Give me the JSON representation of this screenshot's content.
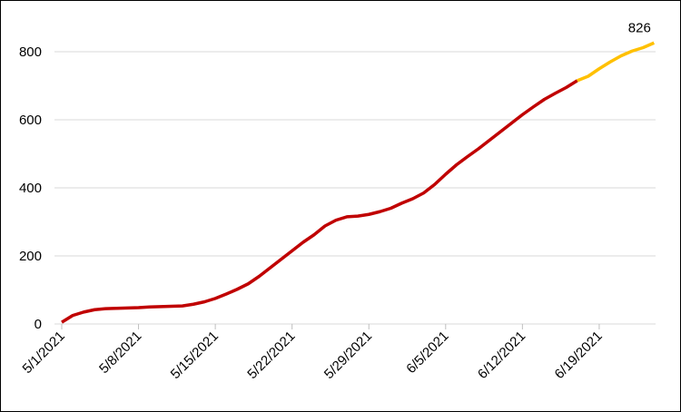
{
  "chart_data": {
    "type": "line",
    "categories": [
      "5/1/2021",
      null,
      null,
      null,
      null,
      null,
      null,
      "5/8/2021",
      null,
      null,
      null,
      null,
      null,
      null,
      "5/15/2021",
      null,
      null,
      null,
      null,
      null,
      null,
      "5/22/2021",
      null,
      null,
      null,
      null,
      null,
      null,
      "5/29/2021",
      null,
      null,
      null,
      null,
      null,
      null,
      "6/5/2021",
      null,
      null,
      null,
      null,
      null,
      null,
      "6/12/2021",
      null,
      null,
      null,
      null,
      null,
      null,
      "6/19/2021",
      null,
      null,
      null,
      null,
      null
    ],
    "series": [
      {
        "color": "#c00000",
        "values": [
          5,
          25,
          35,
          42,
          45,
          46,
          47,
          48,
          50,
          51,
          52,
          53,
          58,
          65,
          75,
          88,
          102,
          118,
          140,
          165,
          190,
          215,
          240,
          262,
          288,
          305,
          315,
          317,
          322,
          330,
          340,
          355,
          368,
          385,
          410,
          440,
          468,
          492,
          515,
          540,
          565,
          590,
          615,
          638,
          660,
          678,
          695,
          715,
          null,
          null,
          null,
          null,
          null,
          null,
          null
        ]
      },
      {
        "color": "#ffc000",
        "values": [
          null,
          null,
          null,
          null,
          null,
          null,
          null,
          null,
          null,
          null,
          null,
          null,
          null,
          null,
          null,
          null,
          null,
          null,
          null,
          null,
          null,
          null,
          null,
          null,
          null,
          null,
          null,
          null,
          null,
          null,
          null,
          null,
          null,
          null,
          null,
          null,
          null,
          null,
          null,
          null,
          null,
          null,
          null,
          null,
          null,
          null,
          null,
          715,
          728,
          750,
          770,
          788,
          802,
          812,
          826
        ]
      }
    ],
    "ylim": [
      0,
      800
    ],
    "yticks": [
      0,
      200,
      400,
      600,
      800
    ],
    "grid": true
  }
}
